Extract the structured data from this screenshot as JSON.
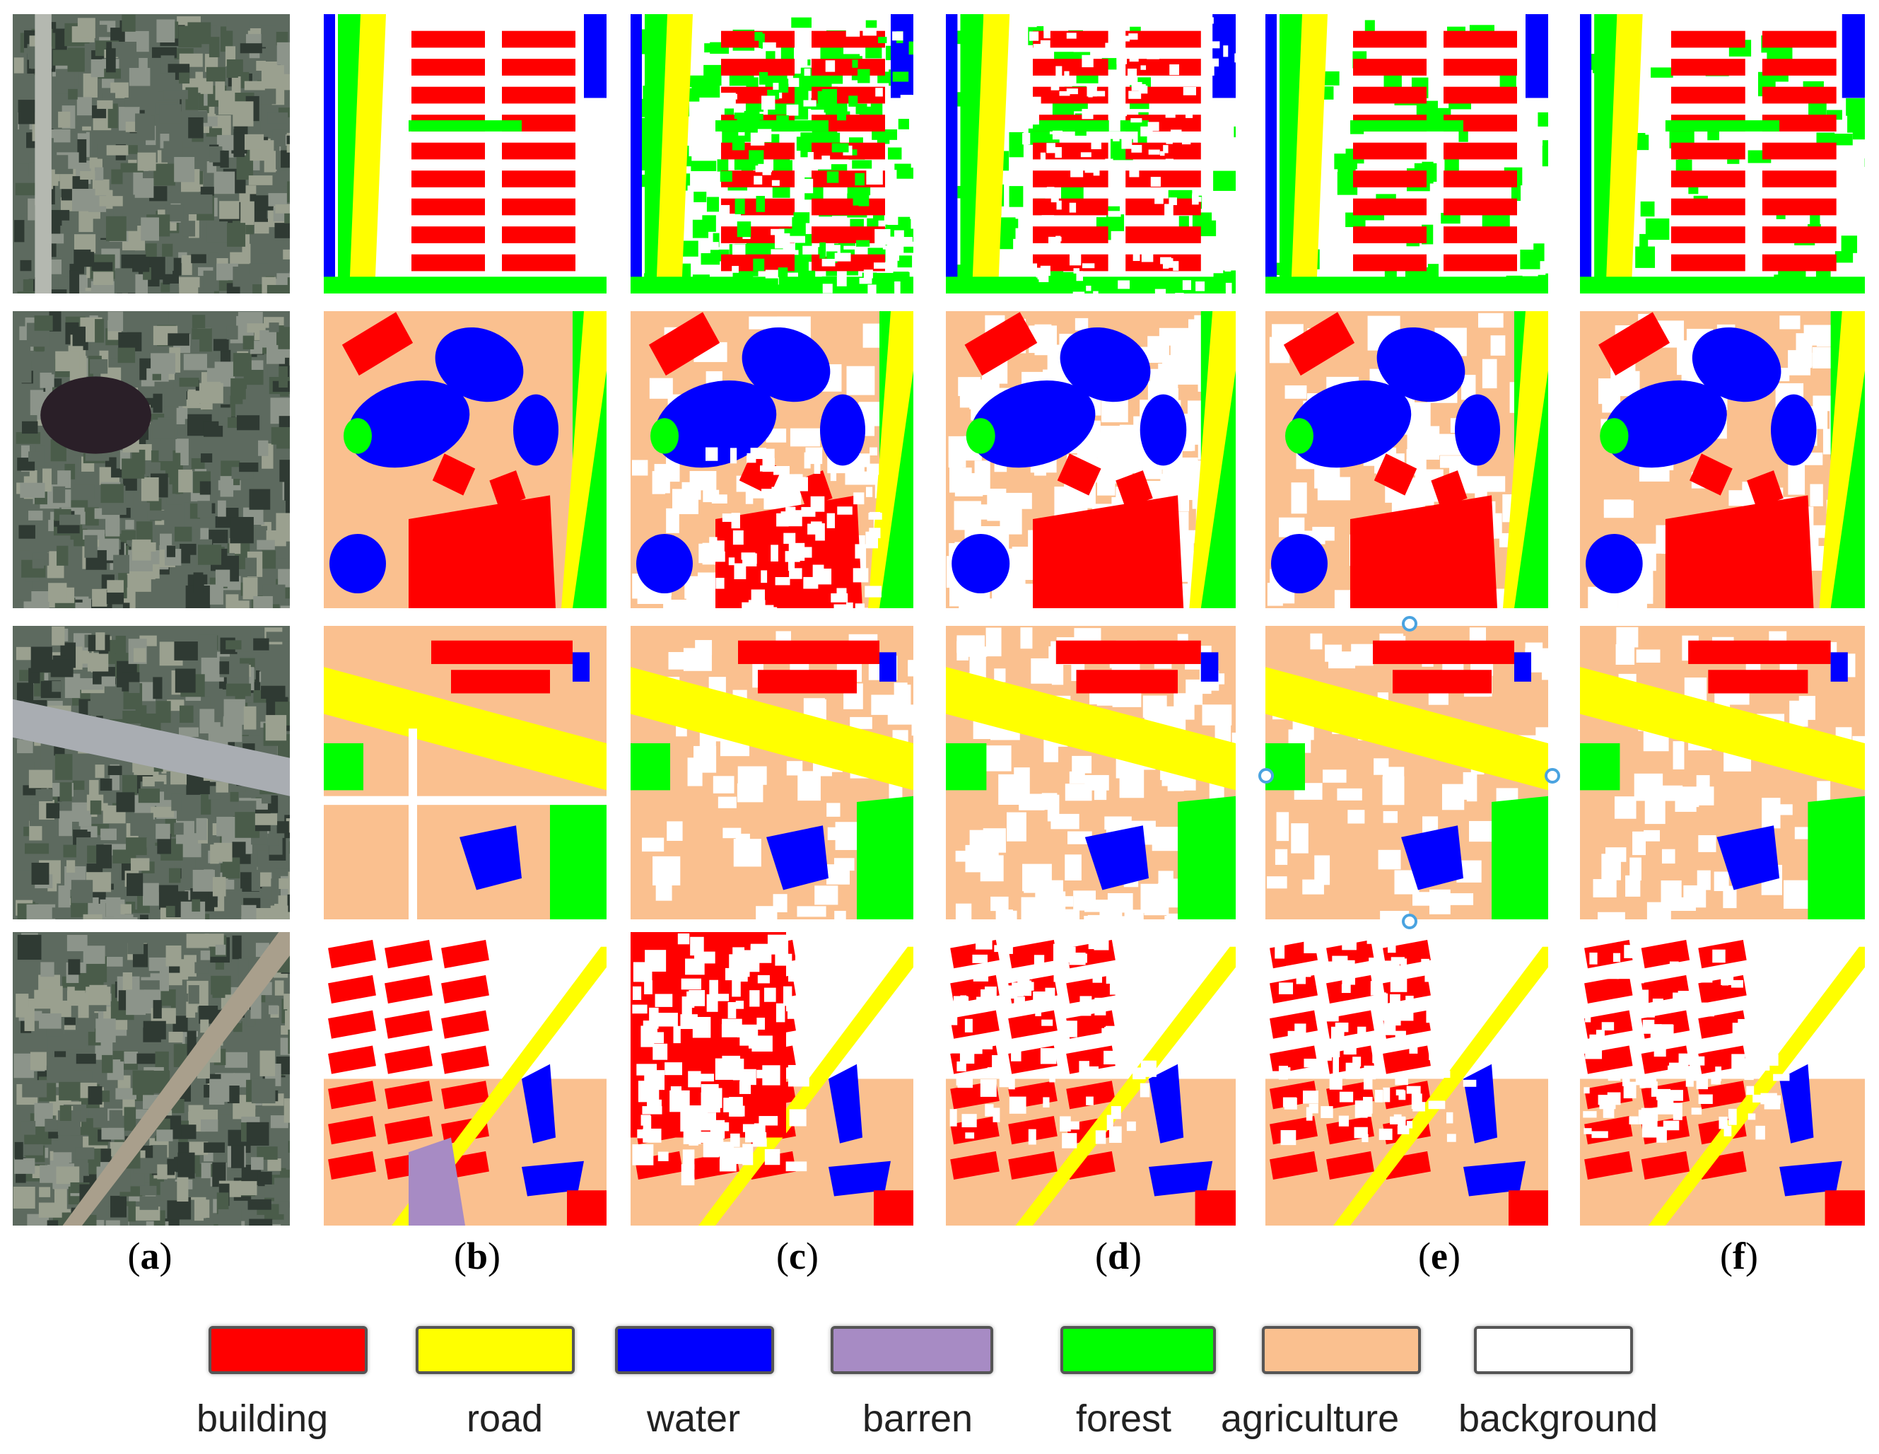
{
  "columns": [
    {
      "label": "a",
      "key": "image"
    },
    {
      "label": "b",
      "key": "ground-truth"
    },
    {
      "label": "c",
      "key": "result-c"
    },
    {
      "label": "d",
      "key": "result-d"
    },
    {
      "label": "e",
      "key": "result-e"
    },
    {
      "label": "f",
      "key": "result-f"
    }
  ],
  "legend": [
    {
      "name": "building",
      "color": "#ff0000"
    },
    {
      "name": "road",
      "color": "#ffff00"
    },
    {
      "name": "water",
      "color": "#0000ff"
    },
    {
      "name": "barren",
      "color": "#a78bc4"
    },
    {
      "name": "forest",
      "color": "#00ff00"
    },
    {
      "name": "agriculture",
      "color": "#fac08f"
    },
    {
      "name": "background",
      "color": "#ffffff"
    }
  ],
  "palette": {
    "building": "#ff0000",
    "road": "#ffff00",
    "water": "#0000ff",
    "barren": "#a78bc4",
    "forest": "#00ff00",
    "agriculture": "#fac08f",
    "background": "#ffffff",
    "aerial_dark": "#2f3a33",
    "aerial_mid": "#5d6a5f",
    "aerial_light": "#8c948a"
  },
  "selection_handle_color": "#4aa3e0"
}
